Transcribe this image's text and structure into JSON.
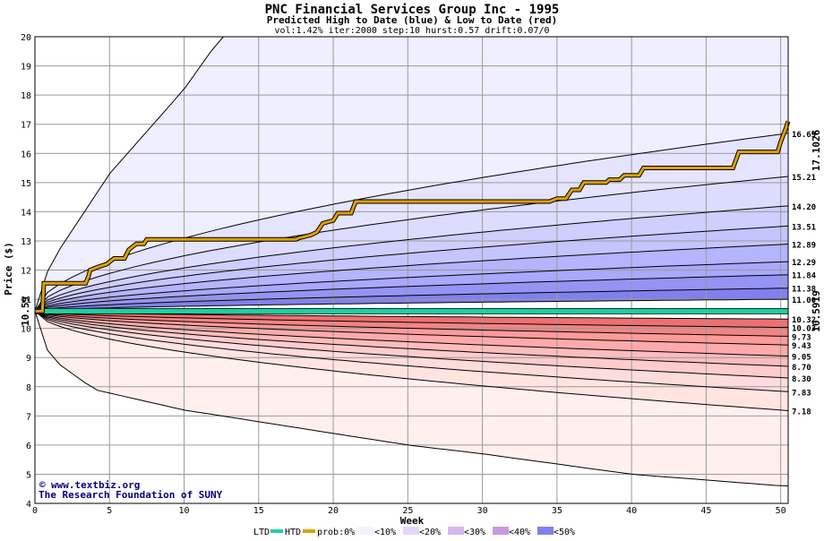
{
  "chart_data": {
    "type": "area",
    "title": "PNC Financial Services Group Inc - 1995",
    "subtitle": "Predicted High to Date (blue) &  Low to Date (red)",
    "params": "vol:1.42% iter:2000 step:10 hurst:0.57 drift:0.07/0",
    "xlabel": "Week",
    "ylabel": "Price ($)",
    "xlim": [
      0,
      50.5
    ],
    "ylim": [
      4,
      20
    ],
    "xticks": [
      0,
      5,
      10,
      15,
      20,
      25,
      30,
      35,
      40,
      45,
      50
    ],
    "yticks": [
      4,
      5,
      6,
      7,
      8,
      9,
      10,
      11,
      12,
      13,
      14,
      15,
      16,
      17,
      18,
      19,
      20
    ],
    "grid": true,
    "start_price": 10.59,
    "start_label": "10.59",
    "ltd_level": 10.5919,
    "ltd_label": "10.5919",
    "htd_end_label": "17.1026",
    "upper_end_labels": [
      "16.69",
      "15.21",
      "14.20",
      "13.51",
      "12.89",
      "12.29",
      "11.84",
      "11.38",
      "11.00"
    ],
    "upper_end_values": [
      16.69,
      15.21,
      14.2,
      13.51,
      12.89,
      12.29,
      11.84,
      11.38,
      11.0
    ],
    "lower_end_labels": [
      "10.32",
      "10.03",
      "9.73",
      "9.43",
      "9.05",
      "8.70",
      "8.30",
      "7.83",
      "7.18"
    ],
    "lower_end_values": [
      10.32,
      10.03,
      9.73,
      9.43,
      9.05,
      8.7,
      8.3,
      7.83,
      7.18
    ],
    "upper_envelope": [
      [
        0,
        10.59
      ],
      [
        1,
        12.2
      ],
      [
        5,
        15.3
      ],
      [
        10,
        18.2
      ],
      [
        12.5,
        20
      ]
    ],
    "lower_envelope": [
      [
        0,
        10.59
      ],
      [
        1,
        9.0
      ],
      [
        4,
        7.9
      ],
      [
        10,
        7.2
      ],
      [
        20,
        6.4
      ],
      [
        25,
        6.0
      ],
      [
        30,
        5.7
      ],
      [
        40,
        5.0
      ],
      [
        50,
        4.6
      ]
    ],
    "htd_series": [
      [
        0,
        10.59
      ],
      [
        0.5,
        10.59
      ],
      [
        0.6,
        11.55
      ],
      [
        3.4,
        11.55
      ],
      [
        3.6,
        11.8
      ],
      [
        3.7,
        12.0
      ],
      [
        4.2,
        12.1
      ],
      [
        4.8,
        12.2
      ],
      [
        5.3,
        12.4
      ],
      [
        6.0,
        12.4
      ],
      [
        6.3,
        12.7
      ],
      [
        6.8,
        12.9
      ],
      [
        7.3,
        12.9
      ],
      [
        7.5,
        13.05
      ],
      [
        17.5,
        13.05
      ],
      [
        17.7,
        13.1
      ],
      [
        18.5,
        13.2
      ],
      [
        18.9,
        13.3
      ],
      [
        19.3,
        13.6
      ],
      [
        20.0,
        13.7
      ],
      [
        20.3,
        13.95
      ],
      [
        21.2,
        13.95
      ],
      [
        21.5,
        14.35
      ],
      [
        34.5,
        14.35
      ],
      [
        35.0,
        14.45
      ],
      [
        35.6,
        14.45
      ],
      [
        36.0,
        14.75
      ],
      [
        36.5,
        14.75
      ],
      [
        36.8,
        15.0
      ],
      [
        38.3,
        15.0
      ],
      [
        38.5,
        15.1
      ],
      [
        39.2,
        15.1
      ],
      [
        39.5,
        15.25
      ],
      [
        40.5,
        15.25
      ],
      [
        40.8,
        15.5
      ],
      [
        46.8,
        15.5
      ],
      [
        47.2,
        16.05
      ],
      [
        49.8,
        16.05
      ],
      [
        50.0,
        16.4
      ],
      [
        50.3,
        16.8
      ],
      [
        50.5,
        17.1
      ]
    ],
    "band_colors": [
      "#efefff",
      "#dcdcff",
      "#c4c4ff",
      "#a8a8ff",
      "#8080ee"
    ],
    "low_band_colors": [
      "#fff0ee",
      "#ffdcdc",
      "#ffc4c4",
      "#ffa0a0",
      "#ee7070"
    ]
  },
  "credits": {
    "site": "www.textbiz.org",
    "copyright": "©",
    "org": "The Research Foundation of SUNY"
  },
  "legend": {
    "ltd": "LTD",
    "htd": "HTD",
    "prob": "prob:0%",
    "items": [
      "<10%",
      "<20%",
      "<30%",
      "<40%",
      "<50%"
    ],
    "item_colors": [
      "#f3f3ff",
      "#e6d6ff",
      "#d6b8ee",
      "#c89ae0",
      "#8080ee"
    ],
    "ltd_color": "#20d0a0",
    "htd_color": "#e0a000"
  }
}
